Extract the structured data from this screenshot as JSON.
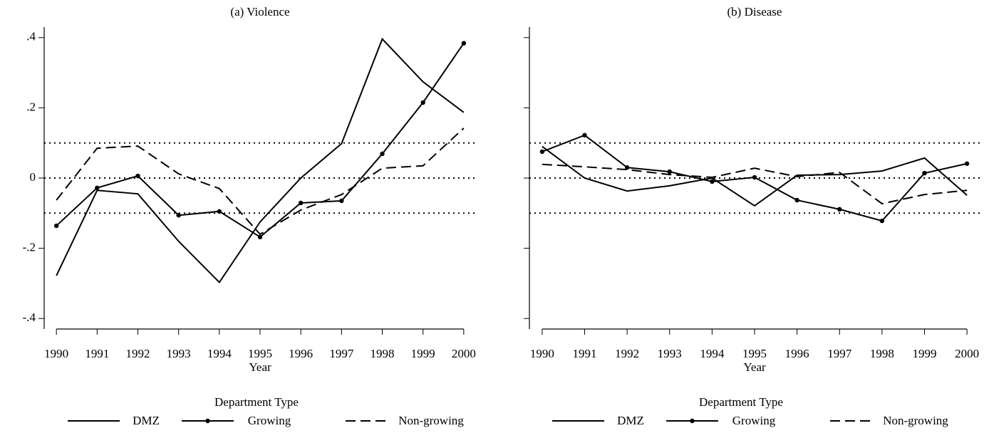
{
  "chart_data": [
    {
      "type": "line",
      "title": "(a) Violence",
      "xlabel": "Year",
      "legend_title": "Department Type",
      "x": [
        1990,
        1991,
        1992,
        1993,
        1994,
        1995,
        1996,
        1997,
        1998,
        1999,
        2000
      ],
      "xlim": [
        1989.7,
        2000.3
      ],
      "xticks": [
        1990,
        1991,
        1992,
        1993,
        1994,
        1995,
        1996,
        1997,
        1998,
        1999,
        2000
      ],
      "ylim": [
        -0.43,
        0.43
      ],
      "yticks": [
        {
          "value": -0.4,
          "label": "-.4"
        },
        {
          "value": -0.2,
          "label": "-.2"
        },
        0,
        {
          "value": 0.2,
          "label": ".2"
        },
        {
          "value": 0.4,
          "label": ".4"
        }
      ],
      "hlines": [
        -0.1,
        0,
        0.1
      ],
      "legend": "bottom",
      "series": [
        {
          "name": "DMZ",
          "color": "#000000",
          "style": "solid",
          "marker": false,
          "values": [
            -0.278,
            -0.035,
            -0.045,
            -0.18,
            -0.297,
            -0.125,
            0.0,
            0.098,
            0.396,
            0.274,
            0.187
          ]
        },
        {
          "name": "Growing",
          "color": "#000000",
          "style": "solid",
          "marker": true,
          "values": [
            -0.136,
            -0.028,
            0.006,
            -0.106,
            -0.095,
            -0.168,
            -0.071,
            -0.065,
            0.069,
            0.215,
            0.384
          ]
        },
        {
          "name": "Non-growing",
          "color": "#000000",
          "style": "dashed",
          "marker": false,
          "values": [
            -0.063,
            0.085,
            0.091,
            0.012,
            -0.03,
            -0.16,
            -0.091,
            -0.047,
            0.028,
            0.035,
            0.142
          ]
        }
      ]
    },
    {
      "type": "line",
      "title": "(b) Disease",
      "xlabel": "Year",
      "legend_title": "Department Type",
      "x": [
        1990,
        1991,
        1992,
        1993,
        1994,
        1995,
        1996,
        1997,
        1998,
        1999,
        2000
      ],
      "xlim": [
        1989.7,
        2000.3
      ],
      "xticks": [
        1990,
        1991,
        1992,
        1993,
        1994,
        1995,
        1996,
        1997,
        1998,
        1999,
        2000
      ],
      "ylim": [
        -0.43,
        0.43
      ],
      "yticks": [
        -0.4,
        -0.2,
        0,
        0.2,
        0.4
      ],
      "ytick_labels": false,
      "hlines": [
        -0.1,
        0,
        0.1
      ],
      "legend": "bottom",
      "series": [
        {
          "name": "DMZ",
          "color": "#000000",
          "style": "solid",
          "marker": false,
          "values": [
            0.09,
            0.0,
            -0.037,
            -0.022,
            0.0,
            -0.079,
            0.008,
            0.01,
            0.02,
            0.057,
            -0.049
          ]
        },
        {
          "name": "Growing",
          "color": "#000000",
          "style": "solid",
          "marker": true,
          "values": [
            0.075,
            0.122,
            0.03,
            0.018,
            -0.01,
            0.002,
            -0.063,
            -0.089,
            -0.122,
            0.014,
            0.041
          ]
        },
        {
          "name": "Non-growing",
          "color": "#000000",
          "style": "dashed",
          "marker": false,
          "values": [
            0.039,
            0.032,
            0.024,
            0.01,
            0.002,
            0.028,
            0.004,
            0.016,
            -0.073,
            -0.047,
            -0.035
          ]
        }
      ]
    }
  ]
}
